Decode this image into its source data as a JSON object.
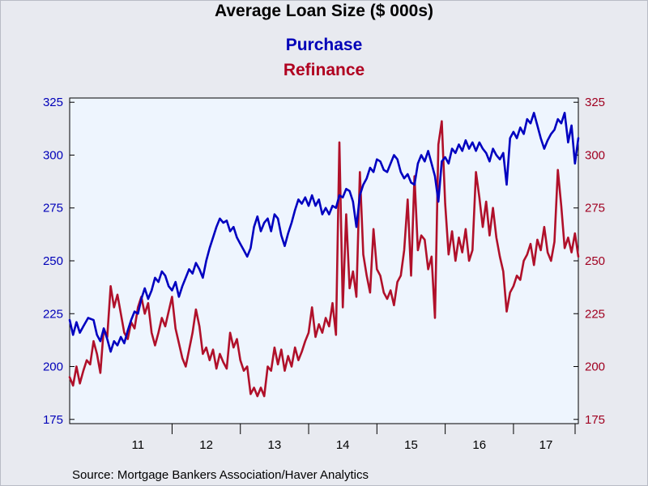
{
  "chart_data": {
    "type": "line",
    "title": "Average Loan Size ($ 000s)",
    "source": "Source:  Mortgage Bankers Association/Haver Analytics",
    "x_labels": [
      "11",
      "12",
      "13",
      "14",
      "15",
      "16",
      "17"
    ],
    "x_range": [
      2010.5,
      2017.95
    ],
    "left_axis": {
      "ticks": [
        175,
        200,
        225,
        250,
        275,
        300,
        325
      ],
      "range": [
        173,
        327
      ],
      "color": "#0000b8"
    },
    "right_axis": {
      "ticks": [
        175,
        200,
        225,
        250,
        275,
        300,
        325
      ],
      "range": [
        173,
        327
      ],
      "color": "#a00020"
    },
    "grid": false,
    "series": [
      {
        "name": "Purchase",
        "axis": "left",
        "color": "#0000c0",
        "points": [
          [
            2010.5,
            222
          ],
          [
            2010.55,
            215
          ],
          [
            2010.6,
            221
          ],
          [
            2010.65,
            216
          ],
          [
            2010.7,
            219
          ],
          [
            2010.77,
            223
          ],
          [
            2010.85,
            222
          ],
          [
            2010.9,
            215
          ],
          [
            2010.95,
            212
          ],
          [
            2011.0,
            218
          ],
          [
            2011.05,
            213
          ],
          [
            2011.1,
            207
          ],
          [
            2011.15,
            212
          ],
          [
            2011.2,
            210
          ],
          [
            2011.25,
            214
          ],
          [
            2011.3,
            211
          ],
          [
            2011.35,
            217
          ],
          [
            2011.4,
            222
          ],
          [
            2011.45,
            226
          ],
          [
            2011.5,
            225
          ],
          [
            2011.55,
            232
          ],
          [
            2011.6,
            237
          ],
          [
            2011.65,
            232
          ],
          [
            2011.7,
            236
          ],
          [
            2011.75,
            242
          ],
          [
            2011.8,
            240
          ],
          [
            2011.85,
            245
          ],
          [
            2011.9,
            243
          ],
          [
            2011.95,
            238
          ],
          [
            2012.0,
            236
          ],
          [
            2012.05,
            240
          ],
          [
            2012.1,
            233
          ],
          [
            2012.15,
            238
          ],
          [
            2012.2,
            242
          ],
          [
            2012.25,
            246
          ],
          [
            2012.3,
            244
          ],
          [
            2012.35,
            249
          ],
          [
            2012.4,
            246
          ],
          [
            2012.45,
            242
          ],
          [
            2012.5,
            250
          ],
          [
            2012.55,
            256
          ],
          [
            2012.6,
            261
          ],
          [
            2012.65,
            266
          ],
          [
            2012.7,
            270
          ],
          [
            2012.75,
            268
          ],
          [
            2012.8,
            269
          ],
          [
            2012.85,
            264
          ],
          [
            2012.9,
            266
          ],
          [
            2012.95,
            261
          ],
          [
            2013.0,
            258
          ],
          [
            2013.05,
            255
          ],
          [
            2013.1,
            252
          ],
          [
            2013.15,
            256
          ],
          [
            2013.2,
            266
          ],
          [
            2013.25,
            271
          ],
          [
            2013.3,
            264
          ],
          [
            2013.35,
            268
          ],
          [
            2013.4,
            270
          ],
          [
            2013.45,
            264
          ],
          [
            2013.5,
            272
          ],
          [
            2013.55,
            270
          ],
          [
            2013.6,
            262
          ],
          [
            2013.65,
            257
          ],
          [
            2013.7,
            263
          ],
          [
            2013.75,
            268
          ],
          [
            2013.8,
            274
          ],
          [
            2013.85,
            279
          ],
          [
            2013.9,
            277
          ],
          [
            2013.95,
            280
          ],
          [
            2014.0,
            276
          ],
          [
            2014.05,
            281
          ],
          [
            2014.1,
            276
          ],
          [
            2014.15,
            279
          ],
          [
            2014.2,
            272
          ],
          [
            2014.25,
            275
          ],
          [
            2014.3,
            272
          ],
          [
            2014.35,
            276
          ],
          [
            2014.4,
            275
          ],
          [
            2014.45,
            281
          ],
          [
            2014.5,
            280
          ],
          [
            2014.55,
            284
          ],
          [
            2014.6,
            283
          ],
          [
            2014.65,
            278
          ],
          [
            2014.7,
            266
          ],
          [
            2014.75,
            281
          ],
          [
            2014.8,
            286
          ],
          [
            2014.85,
            289
          ],
          [
            2014.9,
            294
          ],
          [
            2014.95,
            292
          ],
          [
            2015.0,
            298
          ],
          [
            2015.05,
            297
          ],
          [
            2015.1,
            293
          ],
          [
            2015.15,
            292
          ],
          [
            2015.2,
            296
          ],
          [
            2015.25,
            300
          ],
          [
            2015.3,
            298
          ],
          [
            2015.35,
            292
          ],
          [
            2015.4,
            289
          ],
          [
            2015.45,
            291
          ],
          [
            2015.5,
            287
          ],
          [
            2015.55,
            286
          ],
          [
            2015.6,
            296
          ],
          [
            2015.65,
            300
          ],
          [
            2015.7,
            297
          ],
          [
            2015.75,
            302
          ],
          [
            2015.8,
            296
          ],
          [
            2015.85,
            290
          ],
          [
            2015.9,
            278
          ],
          [
            2015.95,
            297
          ],
          [
            2016.0,
            299
          ],
          [
            2016.05,
            296
          ],
          [
            2016.1,
            303
          ],
          [
            2016.15,
            301
          ],
          [
            2016.2,
            305
          ],
          [
            2016.25,
            302
          ],
          [
            2016.3,
            307
          ],
          [
            2016.35,
            303
          ],
          [
            2016.4,
            306
          ],
          [
            2016.45,
            302
          ],
          [
            2016.5,
            306
          ],
          [
            2016.55,
            303
          ],
          [
            2016.6,
            301
          ],
          [
            2016.65,
            297
          ],
          [
            2016.7,
            303
          ],
          [
            2016.75,
            300
          ],
          [
            2016.8,
            298
          ],
          [
            2016.85,
            301
          ],
          [
            2016.9,
            286
          ],
          [
            2016.95,
            308
          ],
          [
            2017.0,
            311
          ],
          [
            2017.05,
            308
          ],
          [
            2017.1,
            313
          ],
          [
            2017.15,
            310
          ],
          [
            2017.2,
            317
          ],
          [
            2017.25,
            315
          ],
          [
            2017.3,
            320
          ],
          [
            2017.35,
            314
          ],
          [
            2017.4,
            308
          ],
          [
            2017.45,
            303
          ],
          [
            2017.5,
            307
          ],
          [
            2017.55,
            310
          ],
          [
            2017.6,
            312
          ],
          [
            2017.65,
            317
          ],
          [
            2017.7,
            315
          ],
          [
            2017.75,
            320
          ],
          [
            2017.8,
            306
          ],
          [
            2017.85,
            314
          ],
          [
            2017.9,
            296
          ],
          [
            2017.95,
            308
          ]
        ]
      },
      {
        "name": "Refinance",
        "axis": "right",
        "color": "#b0102a",
        "points": [
          [
            2010.5,
            195
          ],
          [
            2010.55,
            191
          ],
          [
            2010.6,
            200
          ],
          [
            2010.65,
            192
          ],
          [
            2010.7,
            198
          ],
          [
            2010.75,
            203
          ],
          [
            2010.8,
            201
          ],
          [
            2010.85,
            212
          ],
          [
            2010.9,
            206
          ],
          [
            2010.95,
            197
          ],
          [
            2011.0,
            218
          ],
          [
            2011.05,
            214
          ],
          [
            2011.1,
            238
          ],
          [
            2011.15,
            228
          ],
          [
            2011.2,
            234
          ],
          [
            2011.25,
            225
          ],
          [
            2011.3,
            216
          ],
          [
            2011.35,
            213
          ],
          [
            2011.4,
            221
          ],
          [
            2011.45,
            218
          ],
          [
            2011.5,
            228
          ],
          [
            2011.55,
            233
          ],
          [
            2011.6,
            225
          ],
          [
            2011.65,
            230
          ],
          [
            2011.7,
            216
          ],
          [
            2011.75,
            210
          ],
          [
            2011.8,
            216
          ],
          [
            2011.85,
            223
          ],
          [
            2011.9,
            219
          ],
          [
            2011.95,
            226
          ],
          [
            2012.0,
            233
          ],
          [
            2012.05,
            218
          ],
          [
            2012.1,
            211
          ],
          [
            2012.15,
            204
          ],
          [
            2012.2,
            200
          ],
          [
            2012.25,
            208
          ],
          [
            2012.3,
            216
          ],
          [
            2012.35,
            227
          ],
          [
            2012.4,
            219
          ],
          [
            2012.45,
            206
          ],
          [
            2012.5,
            209
          ],
          [
            2012.55,
            203
          ],
          [
            2012.6,
            208
          ],
          [
            2012.65,
            199
          ],
          [
            2012.7,
            206
          ],
          [
            2012.75,
            202
          ],
          [
            2012.8,
            199
          ],
          [
            2012.85,
            216
          ],
          [
            2012.9,
            209
          ],
          [
            2012.95,
            213
          ],
          [
            2013.0,
            203
          ],
          [
            2013.05,
            198
          ],
          [
            2013.1,
            200
          ],
          [
            2013.15,
            187
          ],
          [
            2013.2,
            190
          ],
          [
            2013.25,
            186
          ],
          [
            2013.3,
            190
          ],
          [
            2013.35,
            186
          ],
          [
            2013.4,
            200
          ],
          [
            2013.45,
            198
          ],
          [
            2013.5,
            209
          ],
          [
            2013.55,
            201
          ],
          [
            2013.6,
            208
          ],
          [
            2013.65,
            198
          ],
          [
            2013.7,
            205
          ],
          [
            2013.75,
            200
          ],
          [
            2013.8,
            209
          ],
          [
            2013.85,
            203
          ],
          [
            2013.9,
            207
          ],
          [
            2013.95,
            212
          ],
          [
            2014.0,
            216
          ],
          [
            2014.05,
            228
          ],
          [
            2014.1,
            214
          ],
          [
            2014.15,
            220
          ],
          [
            2014.2,
            216
          ],
          [
            2014.25,
            223
          ],
          [
            2014.3,
            219
          ],
          [
            2014.35,
            230
          ],
          [
            2014.4,
            215
          ],
          [
            2014.45,
            306
          ],
          [
            2014.5,
            228
          ],
          [
            2014.55,
            272
          ],
          [
            2014.6,
            237
          ],
          [
            2014.65,
            245
          ],
          [
            2014.7,
            233
          ],
          [
            2014.75,
            292
          ],
          [
            2014.8,
            253
          ],
          [
            2014.85,
            243
          ],
          [
            2014.9,
            235
          ],
          [
            2014.95,
            265
          ],
          [
            2015.0,
            246
          ],
          [
            2015.05,
            243
          ],
          [
            2015.1,
            235
          ],
          [
            2015.15,
            232
          ],
          [
            2015.2,
            236
          ],
          [
            2015.25,
            229
          ],
          [
            2015.3,
            240
          ],
          [
            2015.35,
            243
          ],
          [
            2015.4,
            255
          ],
          [
            2015.45,
            279
          ],
          [
            2015.5,
            243
          ],
          [
            2015.55,
            290
          ],
          [
            2015.6,
            255
          ],
          [
            2015.65,
            262
          ],
          [
            2015.7,
            260
          ],
          [
            2015.75,
            246
          ],
          [
            2015.8,
            252
          ],
          [
            2015.85,
            223
          ],
          [
            2015.9,
            305
          ],
          [
            2015.95,
            316
          ],
          [
            2016.0,
            277
          ],
          [
            2016.05,
            253
          ],
          [
            2016.1,
            264
          ],
          [
            2016.15,
            250
          ],
          [
            2016.2,
            261
          ],
          [
            2016.25,
            254
          ],
          [
            2016.3,
            265
          ],
          [
            2016.35,
            250
          ],
          [
            2016.4,
            255
          ],
          [
            2016.45,
            292
          ],
          [
            2016.5,
            280
          ],
          [
            2016.55,
            266
          ],
          [
            2016.6,
            278
          ],
          [
            2016.65,
            262
          ],
          [
            2016.7,
            275
          ],
          [
            2016.75,
            261
          ],
          [
            2016.8,
            252
          ],
          [
            2016.85,
            245
          ],
          [
            2016.9,
            226
          ],
          [
            2016.95,
            235
          ],
          [
            2017.0,
            238
          ],
          [
            2017.05,
            243
          ],
          [
            2017.1,
            241
          ],
          [
            2017.15,
            250
          ],
          [
            2017.2,
            253
          ],
          [
            2017.25,
            258
          ],
          [
            2017.3,
            248
          ],
          [
            2017.35,
            260
          ],
          [
            2017.4,
            255
          ],
          [
            2017.45,
            266
          ],
          [
            2017.5,
            254
          ],
          [
            2017.55,
            250
          ],
          [
            2017.6,
            259
          ],
          [
            2017.65,
            293
          ],
          [
            2017.7,
            276
          ],
          [
            2017.75,
            256
          ],
          [
            2017.8,
            261
          ],
          [
            2017.85,
            254
          ],
          [
            2017.9,
            263
          ],
          [
            2017.95,
            252
          ]
        ]
      }
    ]
  }
}
